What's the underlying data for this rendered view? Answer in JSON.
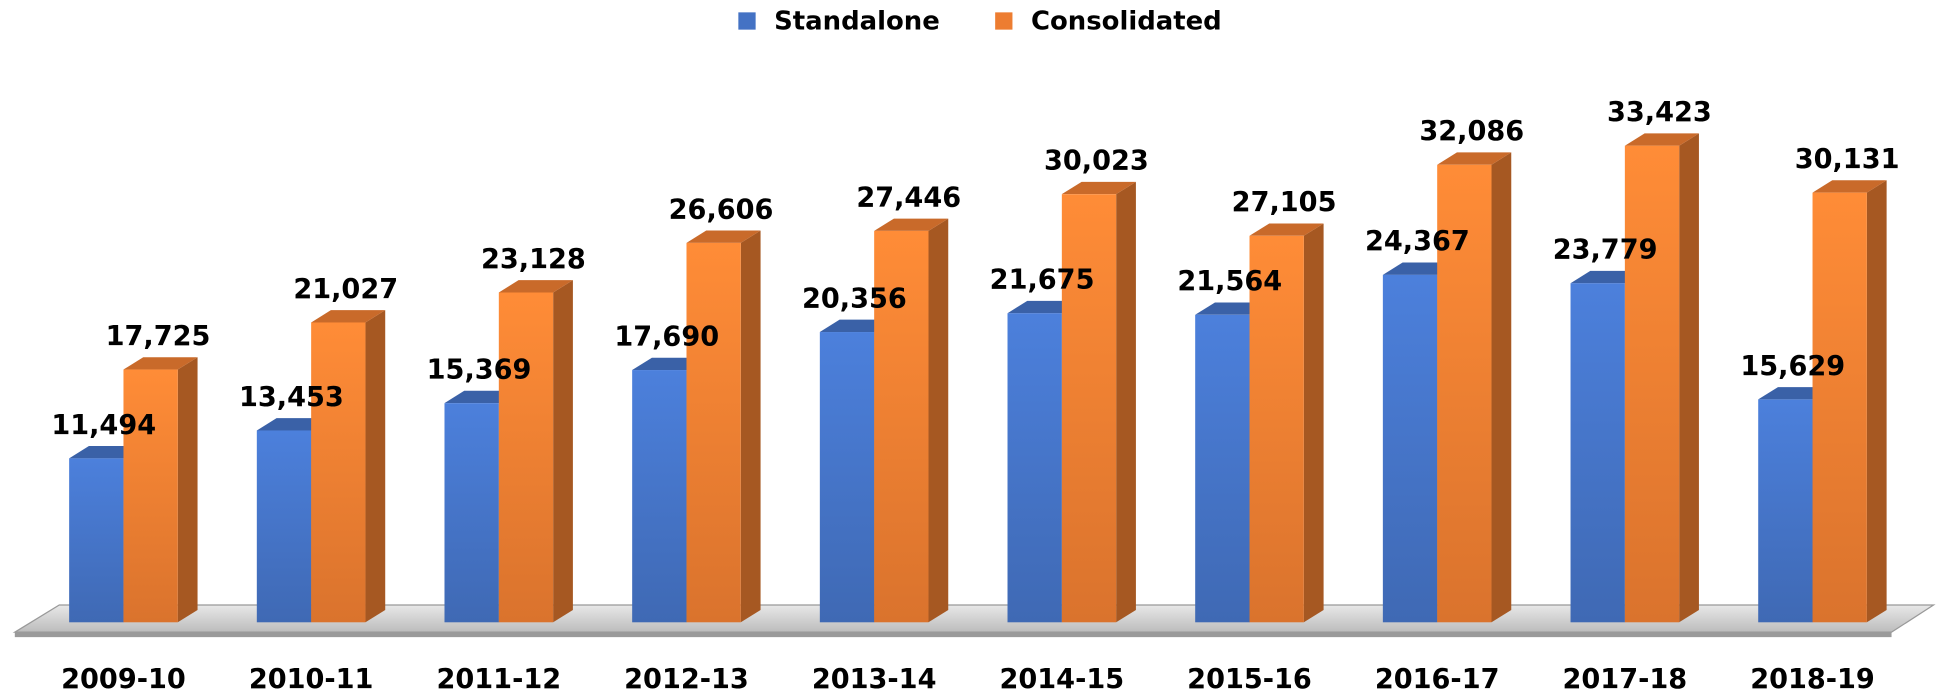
{
  "chart_data": {
    "type": "bar3d",
    "categories": [
      "2009-10",
      "2010-11",
      "2011-12",
      "2012-13",
      "2013-14",
      "2014-15",
      "2015-16",
      "2016-17",
      "2017-18",
      "2018-19"
    ],
    "series": [
      {
        "name": "Standalone",
        "color": "#4472c4",
        "values": [
          11494,
          13453,
          15369,
          17690,
          20356,
          21675,
          21564,
          24367,
          23779,
          15629
        ],
        "value_labels": [
          "11,494",
          "13,453",
          "15,369",
          "17,690",
          "20,356",
          "21,675",
          "21,564",
          "24,367",
          "23,779",
          "15,629"
        ]
      },
      {
        "name": "Consolidated",
        "color": "#ed7d31",
        "values": [
          17725,
          21027,
          23128,
          26606,
          27446,
          30023,
          27105,
          32086,
          33423,
          30131
        ],
        "value_labels": [
          "17,725",
          "21,027",
          "23,128",
          "26,606",
          "27,446",
          "30,023",
          "27,105",
          "32,086",
          "33,423",
          "30,131"
        ]
      }
    ],
    "legend": "top"
  }
}
